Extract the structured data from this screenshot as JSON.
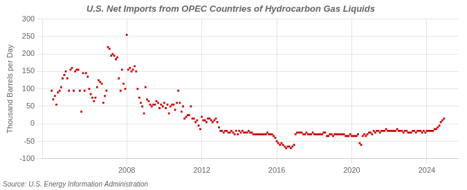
{
  "chart_data": {
    "type": "scatter",
    "title": "U.S. Net Imports from OPEC Countries of Hydrocarbon Gas Liquids",
    "y_label": "Thousand Barrels per Day",
    "annotations": [
      "Source: U.S. Energy Information Administration"
    ],
    "color": "#CC0000",
    "marker": "square",
    "grid": true,
    "xlim": [
      2003.5,
      2025.7
    ],
    "xticks": [
      2008,
      2012,
      2016,
      2020,
      2024
    ],
    "ylim": [
      -100,
      300
    ],
    "yticks": [
      -100,
      -50,
      0,
      50,
      100,
      150,
      200,
      250,
      300
    ],
    "x": [
      2004.0,
      2004.08,
      2004.17,
      2004.25,
      2004.33,
      2004.42,
      2004.5,
      2004.58,
      2004.67,
      2004.75,
      2004.83,
      2004.92,
      2005.0,
      2005.08,
      2005.17,
      2005.25,
      2005.33,
      2005.42,
      2005.5,
      2005.58,
      2005.67,
      2005.75,
      2005.83,
      2005.92,
      2006.0,
      2006.08,
      2006.17,
      2006.25,
      2006.33,
      2006.42,
      2006.5,
      2006.58,
      2006.67,
      2006.75,
      2006.83,
      2006.92,
      2007.0,
      2007.08,
      2007.17,
      2007.25,
      2007.33,
      2007.42,
      2007.5,
      2007.58,
      2007.67,
      2007.75,
      2007.83,
      2007.92,
      2008.0,
      2008.08,
      2008.17,
      2008.25,
      2008.33,
      2008.42,
      2008.5,
      2008.58,
      2008.67,
      2008.75,
      2008.83,
      2008.92,
      2009.0,
      2009.08,
      2009.17,
      2009.25,
      2009.33,
      2009.42,
      2009.5,
      2009.58,
      2009.67,
      2009.75,
      2009.83,
      2009.92,
      2010.0,
      2010.08,
      2010.17,
      2010.25,
      2010.33,
      2010.42,
      2010.5,
      2010.58,
      2010.67,
      2010.75,
      2010.83,
      2010.92,
      2011.0,
      2011.08,
      2011.17,
      2011.25,
      2011.33,
      2011.42,
      2011.5,
      2011.58,
      2011.67,
      2011.75,
      2011.83,
      2011.92,
      2012.0,
      2012.08,
      2012.17,
      2012.25,
      2012.33,
      2012.42,
      2012.5,
      2012.58,
      2012.67,
      2012.75,
      2012.83,
      2012.92,
      2013.0,
      2013.08,
      2013.17,
      2013.25,
      2013.33,
      2013.42,
      2013.5,
      2013.58,
      2013.67,
      2013.75,
      2013.83,
      2013.92,
      2014.0,
      2014.08,
      2014.17,
      2014.25,
      2014.33,
      2014.42,
      2014.5,
      2014.58,
      2014.67,
      2014.75,
      2014.83,
      2014.92,
      2015.0,
      2015.08,
      2015.17,
      2015.25,
      2015.33,
      2015.42,
      2015.5,
      2015.58,
      2015.67,
      2015.75,
      2015.83,
      2015.92,
      2016.0,
      2016.08,
      2016.17,
      2016.25,
      2016.33,
      2016.42,
      2016.5,
      2016.58,
      2016.67,
      2016.75,
      2016.83,
      2016.92,
      2017.0,
      2017.08,
      2017.17,
      2017.25,
      2017.33,
      2017.42,
      2017.5,
      2017.58,
      2017.67,
      2017.75,
      2017.83,
      2017.92,
      2018.0,
      2018.08,
      2018.17,
      2018.25,
      2018.33,
      2018.42,
      2018.5,
      2018.58,
      2018.67,
      2018.75,
      2018.83,
      2018.92,
      2019.0,
      2019.08,
      2019.17,
      2019.25,
      2019.33,
      2019.42,
      2019.5,
      2019.58,
      2019.67,
      2019.75,
      2019.83,
      2019.92,
      2020.0,
      2020.08,
      2020.17,
      2020.25,
      2020.33,
      2020.42,
      2020.5,
      2020.58,
      2020.67,
      2020.75,
      2020.83,
      2020.92,
      2021.0,
      2021.08,
      2021.17,
      2021.25,
      2021.33,
      2021.42,
      2021.5,
      2021.58,
      2021.67,
      2021.75,
      2021.83,
      2021.92,
      2022.0,
      2022.08,
      2022.17,
      2022.25,
      2022.33,
      2022.42,
      2022.5,
      2022.58,
      2022.67,
      2022.75,
      2022.83,
      2022.92,
      2023.0,
      2023.08,
      2023.17,
      2023.25,
      2023.33,
      2023.42,
      2023.5,
      2023.58,
      2023.67,
      2023.75,
      2023.83,
      2023.92,
      2024.0,
      2024.08,
      2024.17,
      2024.25,
      2024.33,
      2024.42,
      2024.5,
      2024.58,
      2024.67,
      2024.75,
      2024.83,
      2024.92
    ],
    "values": [
      95,
      70,
      80,
      55,
      90,
      95,
      105,
      130,
      140,
      150,
      130,
      95,
      155,
      160,
      95,
      150,
      155,
      155,
      95,
      35,
      145,
      95,
      145,
      135,
      100,
      85,
      75,
      65,
      75,
      105,
      125,
      120,
      115,
      60,
      80,
      95,
      220,
      215,
      195,
      200,
      195,
      185,
      190,
      130,
      95,
      155,
      115,
      100,
      255,
      155,
      160,
      150,
      155,
      165,
      150,
      100,
      75,
      60,
      50,
      30,
      105,
      70,
      65,
      55,
      50,
      55,
      55,
      65,
      60,
      45,
      55,
      50,
      60,
      45,
      55,
      30,
      50,
      55,
      55,
      40,
      60,
      95,
      60,
      35,
      50,
      15,
      20,
      25,
      25,
      50,
      15,
      15,
      5,
      10,
      -5,
      -15,
      20,
      10,
      10,
      5,
      15,
      15,
      10,
      5,
      10,
      15,
      5,
      -10,
      -20,
      -20,
      -25,
      -20,
      -20,
      -25,
      -25,
      -20,
      -25,
      -30,
      -20,
      -30,
      -20,
      -25,
      -20,
      -25,
      -25,
      -25,
      -20,
      -25,
      -25,
      -30,
      -30,
      -30,
      -30,
      -30,
      -30,
      -30,
      -30,
      -30,
      -25,
      -30,
      -30,
      -30,
      -35,
      -40,
      -50,
      -55,
      -60,
      -55,
      -60,
      -65,
      -70,
      -65,
      -65,
      -70,
      -65,
      -60,
      -30,
      -25,
      -25,
      -25,
      -25,
      -30,
      -30,
      -25,
      -30,
      -30,
      -30,
      -25,
      -30,
      -30,
      -30,
      -30,
      -30,
      -30,
      -25,
      -25,
      -35,
      -35,
      -30,
      -30,
      -35,
      -30,
      -30,
      -30,
      -30,
      -30,
      -30,
      -30,
      -35,
      -35,
      -35,
      -30,
      -35,
      -35,
      -35,
      -35,
      -30,
      -55,
      -60,
      -35,
      -30,
      -35,
      -30,
      -25,
      -25,
      -30,
      -20,
      -25,
      -20,
      -20,
      -25,
      -20,
      -20,
      -20,
      -15,
      -20,
      -20,
      -20,
      -20,
      -20,
      -20,
      -15,
      -20,
      -20,
      -20,
      -25,
      -20,
      -20,
      -25,
      -25,
      -25,
      -20,
      -20,
      -25,
      -20,
      -20,
      -20,
      -25,
      -20,
      -25,
      -20,
      -20,
      -20,
      -20,
      -20,
      -15,
      -15,
      -10,
      -5,
      5,
      10,
      15
    ]
  }
}
